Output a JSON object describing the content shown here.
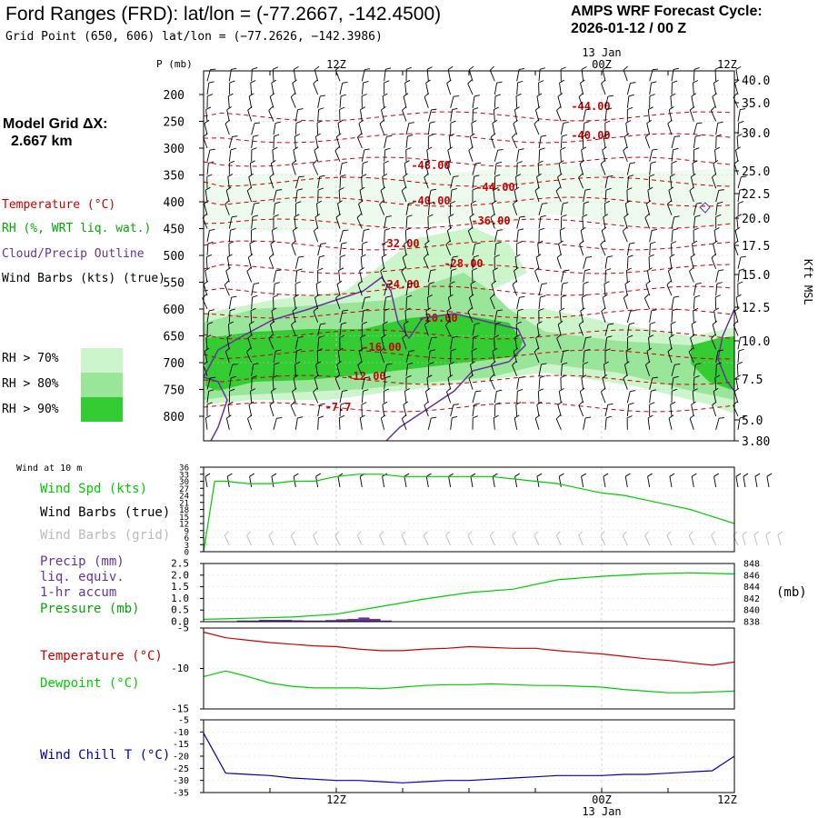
{
  "header": {
    "title": "Ford Ranges (FRD):  lat/lon = (-77.2667, -142.4500)",
    "subtitle": "Grid Point (650, 606) lat/lon = (−77.2626, −142.3986)",
    "cycle_label": "AMPS WRF Forecast Cycle:",
    "cycle_value": "2026-01-12 / 00  Z"
  },
  "model_grid": {
    "label": "Model Grid ΔX:",
    "value": "2.667 km"
  },
  "legend": {
    "temperature": "Temperature (°C)",
    "rh": "RH (%, WRT liq. wat.)",
    "cloud": "Cloud/Precip Outline",
    "wind": "Wind Barbs (kts) (true)",
    "rh70": "RH > 70%",
    "rh80": "RH > 80%",
    "rh90": "RH > 90%"
  },
  "time_axis": {
    "top_date": "13 Jan",
    "labels": [
      "12Z",
      "00Z",
      "12Z"
    ],
    "bottom_date": "13 Jan"
  },
  "colors": {
    "temperature": "#cc0000",
    "rh70": "#ccf5cc",
    "rh80": "#99e599",
    "rh90": "#33cc33",
    "cloud": "#663399",
    "wind_speed": "#00cc00",
    "dewpoint": "#00cc00",
    "wind_chill": "#0000aa",
    "pressure": "#00cc00",
    "precip": "#663399"
  },
  "panels": {
    "wind10m_title": "Wind at 10 m",
    "wind_spd_label": "Wind Spd (kts)",
    "wind_barbs_true": "Wind Barbs (true)",
    "wind_barbs_grid": "Wind Barbs (grid)",
    "precip_label_1": "Precip (mm)",
    "precip_label_2": "liq. equiv.",
    "precip_label_3": "1-hr accum",
    "pressure_label": "Pressure (mb)",
    "pressure_unit": "(mb)",
    "temp_label": "Temperature (°C)",
    "dew_label": "Dewpoint (°C)",
    "windchill_label": "Wind Chill T (°C)"
  },
  "chart_data": [
    {
      "type": "heatmap",
      "title": "",
      "ylabel": "P (mb)",
      "ylabel_right": "Kft MSL",
      "y_ticks_left": [
        "200",
        "250",
        "300",
        "350",
        "400",
        "450",
        "500",
        "550",
        "600",
        "650",
        "700",
        "750",
        "800"
      ],
      "y_ticks_right": [
        "40.0",
        "35.0",
        "30.0",
        "25.0",
        "22.5",
        "20.0",
        "17.5",
        "15.0",
        "12.5",
        "10.0",
        "7.5",
        "5.0",
        "3.80"
      ],
      "temperature_contour_labels": [
        "-44.00",
        "-40.00",
        "-48.00",
        "-44.00",
        "-40.00",
        "-36.00",
        "-32.00",
        "-28.00",
        "-24.00",
        "-20.00",
        "-16.00",
        "-12.00",
        "-7.7"
      ]
    },
    {
      "type": "line",
      "title": "Wind at 10 m",
      "y_ticks": [
        "36",
        "33",
        "30",
        "27",
        "24",
        "21",
        "18",
        "15",
        "12",
        "9",
        "6",
        "3",
        "0"
      ],
      "ylim": [
        0,
        36
      ],
      "series": [
        {
          "name": "Wind Spd (kts)",
          "x": [
            0,
            1,
            2,
            4,
            6,
            8,
            10,
            12,
            14,
            16,
            18,
            20,
            22,
            24,
            26,
            28,
            30,
            32,
            34,
            36,
            38,
            40,
            42,
            44,
            46,
            48
          ],
          "values": [
            0,
            30,
            30,
            29,
            29,
            30,
            30,
            32,
            33,
            33,
            32,
            32,
            32,
            32,
            32,
            31,
            30,
            29,
            27,
            25,
            24,
            22,
            20,
            18,
            15,
            12
          ]
        }
      ]
    },
    {
      "type": "line",
      "title": "",
      "y_ticks": [
        "2.5",
        "2.0",
        "1.5",
        "1.0",
        "0.5",
        "0.0"
      ],
      "y_ticks_right": [
        "848",
        "846",
        "844",
        "842",
        "840",
        "838"
      ],
      "ylim": [
        0,
        2.5
      ],
      "ylim_right": [
        838,
        848
      ],
      "series": [
        {
          "name": "Pressure (mb)",
          "x": [
            0,
            4,
            8,
            12,
            16,
            20,
            24,
            28,
            32,
            36,
            40,
            44,
            48
          ],
          "values": [
            838.4,
            838.6,
            838.8,
            839.3,
            840.6,
            841.9,
            843.0,
            843.6,
            845.2,
            845.8,
            846.2,
            846.4,
            846.2
          ]
        },
        {
          "name": "Precip (mm)",
          "x": [
            3,
            4,
            5,
            6,
            7,
            8,
            9,
            10,
            11,
            12,
            13,
            14,
            15,
            16
          ],
          "values": [
            0.05,
            0.05,
            0.08,
            0.08,
            0.08,
            0.06,
            0.05,
            0.05,
            0.07,
            0.1,
            0.12,
            0.18,
            0.12,
            0.05
          ]
        }
      ]
    },
    {
      "type": "line",
      "title": "",
      "y_ticks": [
        "-5",
        "-10",
        "-15"
      ],
      "ylim": [
        -15,
        -5
      ],
      "series": [
        {
          "name": "Temperature (°C)",
          "x": [
            0,
            2,
            4,
            6,
            8,
            10,
            12,
            14,
            16,
            18,
            20,
            22,
            24,
            26,
            28,
            30,
            32,
            34,
            36,
            38,
            40,
            42,
            44,
            46,
            48
          ],
          "values": [
            -5.5,
            -6.2,
            -6.5,
            -6.8,
            -7.0,
            -7.2,
            -7.3,
            -7.6,
            -7.8,
            -7.8,
            -7.6,
            -7.5,
            -7.3,
            -7.4,
            -7.5,
            -7.5,
            -7.8,
            -8.0,
            -8.2,
            -8.5,
            -8.8,
            -9.0,
            -9.3,
            -9.6,
            -9.2
          ]
        },
        {
          "name": "Dewpoint (°C)",
          "x": [
            0,
            2,
            4,
            6,
            8,
            10,
            12,
            14,
            16,
            18,
            20,
            22,
            24,
            26,
            28,
            30,
            32,
            34,
            36,
            38,
            40,
            42,
            44,
            46,
            48
          ],
          "values": [
            -11.0,
            -10.3,
            -11.0,
            -11.8,
            -12.2,
            -12.4,
            -12.4,
            -12.4,
            -12.5,
            -12.3,
            -12.1,
            -12.0,
            -12.0,
            -11.9,
            -12.0,
            -12.1,
            -12.1,
            -12.2,
            -12.3,
            -12.6,
            -12.8,
            -13.0,
            -13.0,
            -12.9,
            -12.8
          ]
        }
      ]
    },
    {
      "type": "line",
      "title": "",
      "y_ticks": [
        "-5",
        "-10",
        "-15",
        "-20",
        "-25",
        "-30",
        "-35"
      ],
      "ylim": [
        -35,
        -5
      ],
      "series": [
        {
          "name": "Wind Chill T (°C)",
          "x": [
            0,
            2,
            4,
            6,
            8,
            10,
            12,
            14,
            16,
            18,
            20,
            22,
            24,
            26,
            28,
            30,
            32,
            34,
            36,
            38,
            40,
            42,
            44,
            46,
            48
          ],
          "values": [
            -10.5,
            -27,
            -27.5,
            -28,
            -29,
            -29.5,
            -30,
            -30,
            -30.5,
            -31,
            -30.5,
            -30,
            -30,
            -29.5,
            -29,
            -28.5,
            -28,
            -28,
            -28,
            -27.5,
            -27.5,
            -27,
            -26.5,
            -26,
            -20
          ]
        }
      ]
    }
  ]
}
